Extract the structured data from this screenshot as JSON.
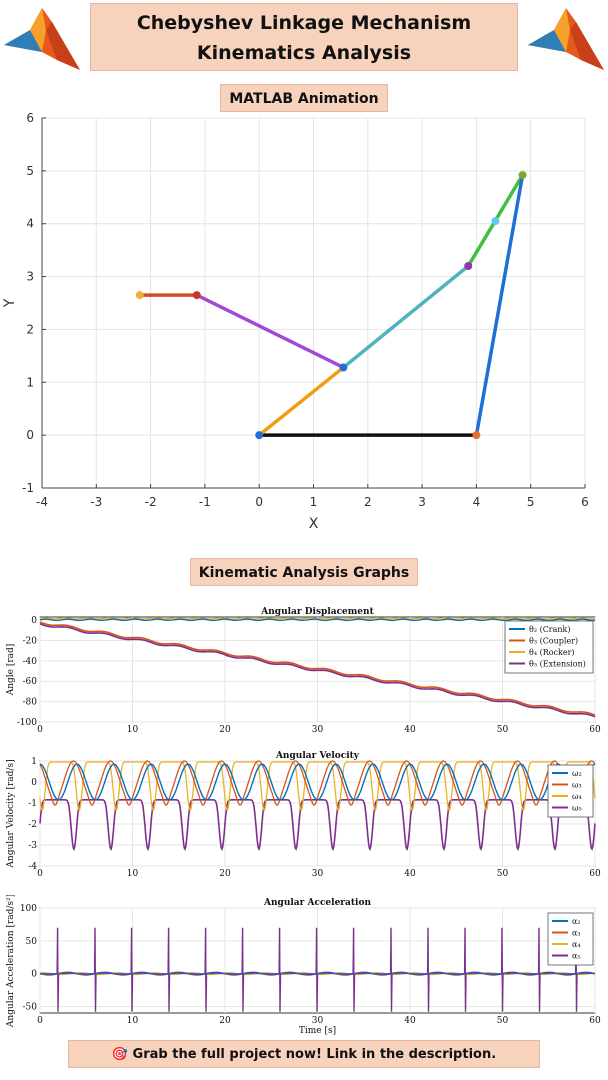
{
  "header": {
    "title_line1": "Chebyshev Linkage Mechanism",
    "title_line2": "Kinematics Analysis",
    "logo_left_icon": "matlab-membrane-logo-icon",
    "logo_right_icon": "matlab-membrane-logo-icon"
  },
  "animation": {
    "label": "MATLAB Animation",
    "xlabel": "X",
    "ylabel": "Y",
    "xticks": [
      "-4",
      "-3",
      "-2",
      "-1",
      "0",
      "1",
      "2",
      "3",
      "4",
      "5",
      "6"
    ],
    "yticks": [
      "-1",
      "0",
      "1",
      "2",
      "3",
      "4",
      "5",
      "6"
    ],
    "links": [
      {
        "from": [
          0,
          0
        ],
        "to": [
          4,
          0
        ],
        "color": "#111111"
      },
      {
        "from": [
          0,
          0
        ],
        "to": [
          1.55,
          1.28
        ],
        "color": "#f39c12"
      },
      {
        "from": [
          1.55,
          1.28
        ],
        "to": [
          3.85,
          3.2
        ],
        "color": "#4fb3bf"
      },
      {
        "from": [
          3.85,
          3.2
        ],
        "to": [
          4.85,
          4.92
        ],
        "color": "#3fbf3f"
      },
      {
        "from": [
          4,
          0
        ],
        "to": [
          4.85,
          4.92
        ],
        "color": "#1f6fd6"
      },
      {
        "from": [
          1.55,
          1.28
        ],
        "to": [
          -1.15,
          2.65
        ],
        "color": "#a24ad6"
      },
      {
        "from": [
          -1.15,
          2.65
        ],
        "to": [
          -2.2,
          2.65
        ],
        "color": "#d24a2a"
      }
    ],
    "joints": [
      {
        "p": [
          0,
          0
        ],
        "color": "#1f6fd6"
      },
      {
        "p": [
          4,
          0
        ],
        "color": "#e0702a"
      },
      {
        "p": [
          1.55,
          1.28
        ],
        "color": "#1f6fd6"
      },
      {
        "p": [
          3.85,
          3.2
        ],
        "color": "#8e3aa8"
      },
      {
        "p": [
          4.35,
          4.05
        ],
        "color": "#5fc8f0"
      },
      {
        "p": [
          4.85,
          4.92
        ],
        "color": "#7aa832"
      },
      {
        "p": [
          -1.15,
          2.65
        ],
        "color": "#c0392b"
      },
      {
        "p": [
          -2.2,
          2.65
        ],
        "color": "#f0b030"
      }
    ]
  },
  "graphs_label": "Kinematic Analysis Graphs",
  "charts": {
    "displacement": {
      "title": "Angular Displacement",
      "ylabel": "Angle [rad]",
      "yticks": [
        "0",
        "-20",
        "-40",
        "-60",
        "-80",
        "-100"
      ],
      "xticks": [
        "0",
        "10",
        "20",
        "30",
        "40",
        "50",
        "60"
      ],
      "legend": [
        "θ₂ (Crank)",
        "θ₃ (Coupler)",
        "θ₄ (Rocker)",
        "θ₅ (Extension)"
      ]
    },
    "velocity": {
      "title": "Angular Velocity",
      "ylabel": "Angular Velocity [rad/s]",
      "yticks": [
        "1",
        "0",
        "-1",
        "-2",
        "-3",
        "-4"
      ],
      "xticks": [
        "0",
        "10",
        "20",
        "30",
        "40",
        "50",
        "60"
      ],
      "legend": [
        "ω₂",
        "ω₃",
        "ω₄",
        "ω₅"
      ]
    },
    "acceleration": {
      "title": "Angular Acceleration",
      "ylabel": "Angular Acceleration [rad/s²]",
      "xlabel": "Time [s]",
      "yticks": [
        "100",
        "50",
        "0",
        "-50"
      ],
      "xticks": [
        "0",
        "10",
        "20",
        "30",
        "40",
        "50",
        "60"
      ],
      "legend": [
        "α₂",
        "α₃",
        "α₄",
        "α₅"
      ]
    },
    "series_colors": [
      "#0072bd",
      "#d95319",
      "#edb120",
      "#7e2f8e"
    ]
  },
  "chart_data": [
    {
      "type": "line",
      "title": "Angular Displacement",
      "xlabel": "",
      "ylabel": "Angle [rad]",
      "xlim": [
        0,
        60
      ],
      "ylim": [
        -100,
        0
      ],
      "series": [
        {
          "name": "θ₂ (Crank)",
          "x": [
            0,
            60
          ],
          "values": [
            0,
            0
          ]
        },
        {
          "name": "θ₃ (Coupler)",
          "x": [
            0,
            10,
            20,
            30,
            40,
            50,
            60
          ],
          "values": [
            -2,
            -15,
            -31,
            -46,
            -62,
            -77,
            -93
          ]
        },
        {
          "name": "θ₄ (Rocker)",
          "x": [
            0,
            60
          ],
          "values": [
            1.5,
            1.5
          ]
        },
        {
          "name": "θ₅ (Extension)",
          "x": [
            0,
            10,
            20,
            30,
            40,
            50,
            60
          ],
          "values": [
            -3.5,
            -16.5,
            -32.5,
            -47.5,
            -63.5,
            -78.5,
            -94.5
          ]
        }
      ],
      "grid": true,
      "legend_position": "right"
    },
    {
      "type": "line",
      "title": "Angular Velocity",
      "xlabel": "",
      "ylabel": "Angular Velocity [rad/s]",
      "xlim": [
        0,
        60
      ],
      "ylim": [
        -4,
        1
      ],
      "series": [
        {
          "name": "ω₂",
          "values_desc": "periodic",
          "min": -0.8,
          "max": 0.85
        },
        {
          "name": "ω₃",
          "min": -1.1,
          "max": 0.95
        },
        {
          "name": "ω₄",
          "min": -1.4,
          "max": 1.0
        },
        {
          "name": "ω₅",
          "min": -3.2,
          "max": -0.8
        }
      ],
      "grid": true,
      "legend_position": "right"
    },
    {
      "type": "line",
      "title": "Angular Acceleration",
      "xlabel": "Time [s]",
      "ylabel": "Angular Acceleration [rad/s²]",
      "xlim": [
        0,
        60
      ],
      "ylim": [
        -60,
        100
      ],
      "series": [
        {
          "name": "α₂"
        },
        {
          "name": "α₃"
        },
        {
          "name": "α₄"
        },
        {
          "name": "α₅",
          "spike_max": 70,
          "spike_min": -60
        }
      ],
      "grid": true,
      "legend_position": "right"
    }
  ],
  "banner": {
    "icon": "target-icon",
    "text": "Grab the full project now! Link in the description."
  }
}
